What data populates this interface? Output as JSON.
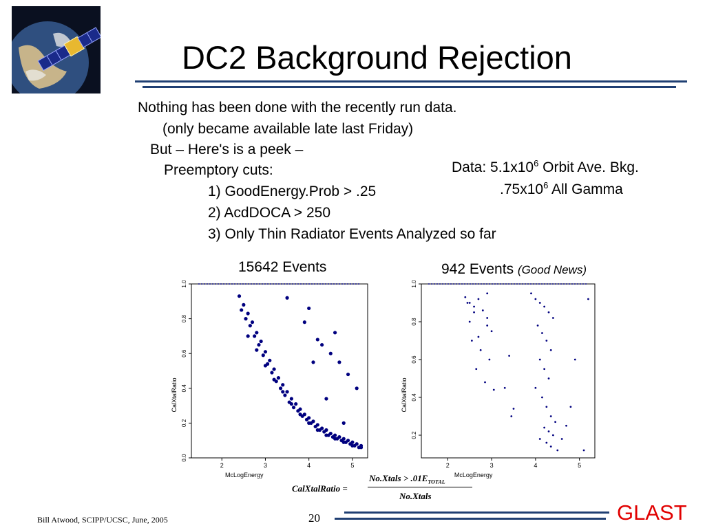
{
  "title": "DC2 Background Rejection",
  "body": {
    "line1": "Nothing has been done with the recently run data.",
    "line2": "(only became available late last Friday)",
    "line3": "But – Here's is a peek –",
    "line4": "Preemptory cuts:",
    "cut1": "1) GoodEnergy.Prob > .25",
    "cut2": "2) AcdDOCA > 250",
    "cut3": "3) Only Thin Radiator Events Analyzed so far"
  },
  "data_note": {
    "line1_prefix": "Data: 5.1x10",
    "line1_exp": "6",
    "line1_suffix": " Orbit Ave. Bkg.",
    "line2_prefix": ".75x10",
    "line2_exp": "6",
    "line2_suffix": " All Gamma"
  },
  "captions": {
    "left": "15642 Events",
    "right": "942 Events",
    "right_note": "(Good News)"
  },
  "formula": {
    "lhs": "CalXtalRatio =",
    "numerator": "No.Xtals > .01E",
    "numerator_sub": "TOTAL",
    "denominator": "No.Xtals"
  },
  "footer": {
    "author": "Bill Atwood,  SCIPP/UCSC, June, 2005",
    "page": "20",
    "logo_text": "GLAST"
  },
  "colors": {
    "points": "#00007f",
    "rule": "#1f3f73",
    "logo_text": "#e10000"
  },
  "chart_data": [
    {
      "type": "scatter",
      "title": "",
      "xlabel": "McLogEnergy",
      "ylabel": "CalXtalRatio",
      "xlim": [
        1.3,
        5.35
      ],
      "ylim": [
        0.0,
        1.0
      ],
      "xticks": [
        "2",
        "3",
        "4",
        "5"
      ],
      "yticks": [
        "0.0",
        "0.2",
        "0.4",
        "0.6",
        "0.8",
        "1.0"
      ],
      "series": [
        {
          "x": [
            2.4,
            2.5,
            2.6,
            2.7,
            2.8,
            2.9,
            3.0,
            3.1,
            3.2,
            3.3,
            3.4,
            3.5,
            3.6,
            3.7,
            3.8,
            3.9,
            4.0,
            4.1,
            4.2,
            4.3,
            4.4,
            4.5,
            4.6,
            4.7,
            4.8,
            4.9,
            5.0,
            5.1,
            5.2,
            2.6,
            2.8,
            3.0,
            3.2,
            3.4,
            3.6,
            3.8,
            4.0,
            4.2,
            4.4,
            4.6,
            4.8,
            5.0,
            5.2,
            2.45,
            2.55,
            2.65,
            2.75,
            2.85,
            2.95,
            3.05,
            3.15,
            3.25,
            3.35,
            3.45,
            3.55,
            3.65,
            3.75,
            3.85,
            3.95,
            4.05,
            4.15,
            4.25,
            4.35,
            4.45,
            4.55,
            4.65,
            4.75,
            4.85,
            4.95,
            5.05,
            5.15,
            3.9,
            4.2,
            4.5,
            4.7,
            4.9,
            5.1,
            4.0,
            4.6,
            4.4,
            4.8,
            3.5,
            4.1,
            4.3
          ],
          "y": [
            0.93,
            0.88,
            0.83,
            0.78,
            0.72,
            0.67,
            0.61,
            0.56,
            0.51,
            0.46,
            0.42,
            0.38,
            0.34,
            0.31,
            0.28,
            0.25,
            0.23,
            0.21,
            0.19,
            0.17,
            0.16,
            0.14,
            0.13,
            0.12,
            0.11,
            0.1,
            0.09,
            0.08,
            0.07,
            0.7,
            0.62,
            0.53,
            0.45,
            0.38,
            0.31,
            0.25,
            0.2,
            0.16,
            0.13,
            0.11,
            0.09,
            0.07,
            0.06,
            0.85,
            0.8,
            0.76,
            0.7,
            0.65,
            0.59,
            0.54,
            0.49,
            0.44,
            0.4,
            0.36,
            0.32,
            0.29,
            0.27,
            0.24,
            0.22,
            0.2,
            0.18,
            0.16,
            0.15,
            0.13,
            0.12,
            0.11,
            0.1,
            0.09,
            0.08,
            0.07,
            0.06,
            0.78,
            0.68,
            0.6,
            0.55,
            0.48,
            0.4,
            0.86,
            0.72,
            0.34,
            0.2,
            0.92,
            0.55,
            0.65
          ]
        }
      ]
    },
    {
      "type": "scatter",
      "title": "",
      "xlabel": "McLogEnergy",
      "ylabel": "CalXtalRatio",
      "xlim": [
        1.4,
        5.35
      ],
      "ylim": [
        0.08,
        1.0
      ],
      "xticks": [
        "2",
        "3",
        "4",
        "5"
      ],
      "yticks": [
        "0.2",
        "0.4",
        "0.6",
        "0.8",
        "1.0"
      ],
      "series": [
        {
          "x": [
            2.4,
            2.5,
            2.6,
            2.7,
            2.8,
            2.9,
            3.0,
            2.55,
            2.75,
            2.65,
            2.85,
            2.45,
            2.95,
            3.05,
            2.6,
            2.9,
            3.3,
            3.5,
            3.4,
            2.5,
            2.7,
            3.9,
            4.0,
            4.1,
            4.2,
            4.3,
            4.4,
            4.05,
            4.15,
            4.25,
            4.35,
            4.1,
            4.2,
            4.3,
            4.0,
            4.15,
            4.25,
            4.35,
            4.45,
            4.2,
            4.3,
            4.4,
            4.1,
            4.25,
            4.35,
            4.5,
            4.6,
            4.7,
            4.8,
            5.1,
            5.2,
            4.9,
            3.45,
            2.9
          ],
          "y": [
            0.93,
            0.9,
            0.88,
            0.92,
            0.86,
            0.82,
            0.75,
            0.7,
            0.65,
            0.55,
            0.48,
            0.9,
            0.6,
            0.44,
            0.85,
            0.95,
            0.45,
            0.34,
            0.62,
            0.8,
            0.72,
            0.95,
            0.92,
            0.9,
            0.88,
            0.85,
            0.82,
            0.78,
            0.74,
            0.7,
            0.65,
            0.6,
            0.55,
            0.5,
            0.45,
            0.4,
            0.35,
            0.3,
            0.27,
            0.24,
            0.22,
            0.2,
            0.18,
            0.16,
            0.14,
            0.12,
            0.18,
            0.25,
            0.35,
            0.12,
            0.92,
            0.6,
            0.3,
            0.78
          ]
        }
      ]
    }
  ]
}
